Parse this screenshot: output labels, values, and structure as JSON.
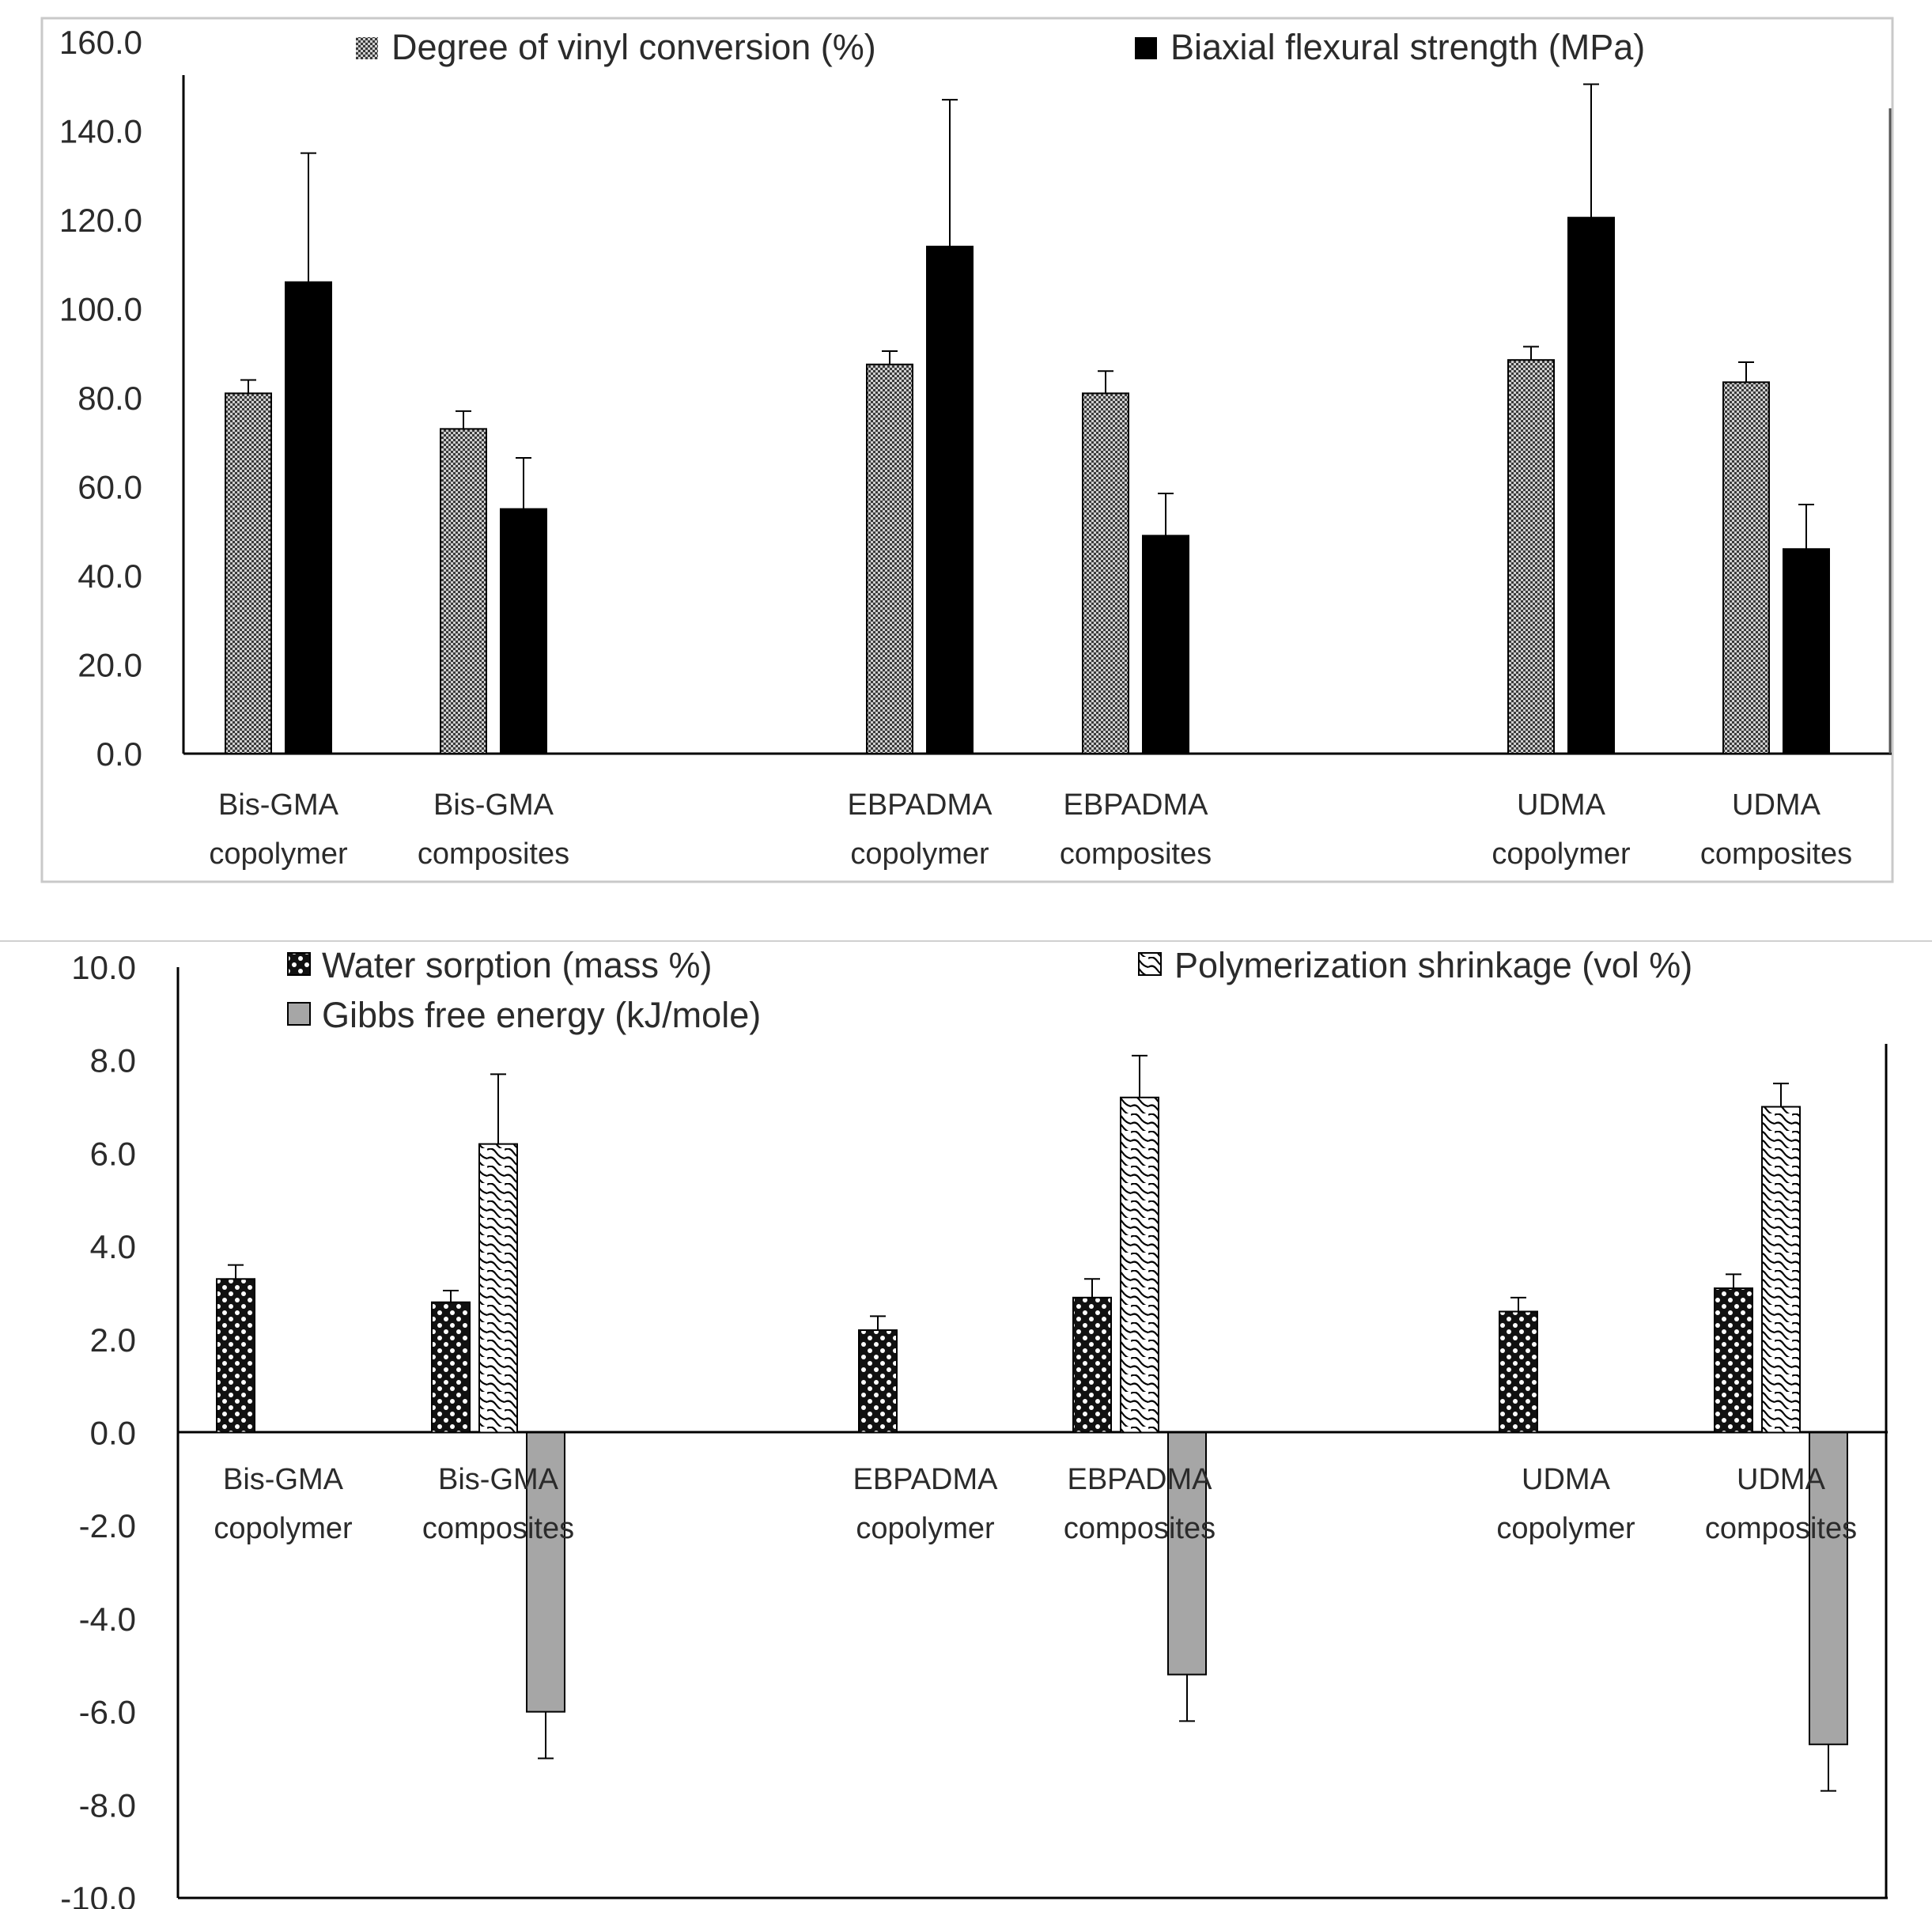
{
  "chart_data": [
    {
      "type": "bar",
      "categories": [
        [
          "Bis-GMA",
          "copolymer"
        ],
        [
          "Bis-GMA",
          "composites"
        ],
        [
          "EBPADMA",
          "copolymer"
        ],
        [
          "EBPADMA",
          "composites"
        ],
        [
          "UDMA",
          "copolymer"
        ],
        [
          "UDMA",
          "composites"
        ]
      ],
      "series": [
        {
          "name": "Degree of vinyl conversion (%)",
          "pattern": "fine-dots",
          "values": [
            81.0,
            73.0,
            87.5,
            81.0,
            88.5,
            83.5
          ],
          "errors": [
            3.0,
            4.0,
            3.0,
            5.0,
            3.0,
            4.5
          ]
        },
        {
          "name": "Biaxial flexural strength (MPa)",
          "pattern": "solid-black",
          "values": [
            106.0,
            55.0,
            114.0,
            49.0,
            120.5,
            46.0
          ],
          "errors": [
            29.0,
            11.5,
            33.0,
            9.5,
            30.0,
            10.0
          ]
        }
      ],
      "ylim": [
        0,
        160
      ],
      "yticks": [
        "0.0",
        "20.0",
        "40.0",
        "60.0",
        "80.0",
        "100.0",
        "120.0",
        "140.0",
        "160.0"
      ],
      "title": "",
      "xlabel": "",
      "ylabel": "",
      "legend": "top"
    },
    {
      "type": "bar",
      "categories": [
        [
          "Bis-GMA",
          "copolymer"
        ],
        [
          "Bis-GMA",
          "composites"
        ],
        [
          "EBPADMA",
          "copolymer"
        ],
        [
          "EBPADMA",
          "composites"
        ],
        [
          "UDMA",
          "copolymer"
        ],
        [
          "UDMA",
          "composites"
        ]
      ],
      "series": [
        {
          "name": "Water sorption (mass %)",
          "pattern": "checker",
          "values": [
            3.3,
            2.8,
            2.2,
            2.9,
            2.6,
            3.1
          ],
          "errors": [
            0.3,
            0.25,
            0.3,
            0.4,
            0.3,
            0.3
          ]
        },
        {
          "name": "Polymerization shrinkage (vol %)",
          "pattern": "wave",
          "values": [
            null,
            6.2,
            null,
            7.2,
            null,
            7.0
          ],
          "errors": [
            null,
            1.5,
            null,
            0.9,
            null,
            0.5
          ]
        },
        {
          "name": "Gibbs free energy (kJ/mole)",
          "pattern": "solid-gray",
          "values": [
            null,
            -6.0,
            null,
            -5.2,
            null,
            -6.7
          ],
          "errors": [
            null,
            1.0,
            null,
            1.0,
            null,
            1.0
          ]
        }
      ],
      "ylim": [
        -10,
        10
      ],
      "yticks": [
        "-10.0",
        "-8.0",
        "-6.0",
        "-4.0",
        "-2.0",
        "0.0",
        "2.0",
        "4.0",
        "6.0",
        "8.0",
        "10.0"
      ],
      "title": "",
      "xlabel": "",
      "ylabel": "",
      "legend": "top"
    }
  ]
}
